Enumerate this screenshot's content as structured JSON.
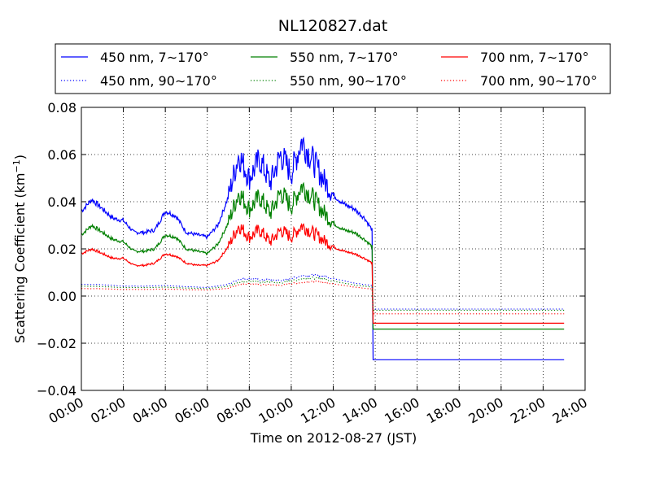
{
  "chart_data": {
    "type": "line",
    "title": "NL120827.dat",
    "xlabel": "Time on 2012-08-27 (JST)",
    "ylabel_main": "Scattering Coefficient (km",
    "ylabel_sup": "−1",
    "ylabel_end": ")",
    "xlim": [
      0,
      24
    ],
    "ylim": [
      -0.04,
      0.08
    ],
    "x_ticks": [
      0,
      2,
      4,
      6,
      8,
      10,
      12,
      14,
      16,
      18,
      20,
      22,
      24
    ],
    "x_tick_labels": [
      "00:00",
      "02:00",
      "04:00",
      "06:00",
      "08:00",
      "10:00",
      "12:00",
      "14:00",
      "16:00",
      "18:00",
      "20:00",
      "22:00",
      "24:00"
    ],
    "y_ticks": [
      -0.04,
      -0.02,
      0.0,
      0.02,
      0.04,
      0.06,
      0.08
    ],
    "y_tick_labels": [
      "−0.04",
      "−0.02",
      "0.00",
      "0.02",
      "0.04",
      "0.06",
      "0.08"
    ],
    "grid": true,
    "legend_position": "top",
    "legend_columns": 3,
    "x_end": 23.0,
    "step_at": 13.9,
    "series": [
      {
        "name": "450 nm, 7∼170°",
        "color": "#0000ff",
        "style": "solid",
        "x": [
          0,
          0.5,
          1,
          1.5,
          2,
          2.5,
          3,
          3.5,
          4,
          4.5,
          5,
          5.5,
          6,
          6.5,
          7,
          7.5,
          8,
          8.5,
          9,
          9.5,
          10,
          10.5,
          11,
          11.5,
          12,
          12.5,
          13,
          13.5,
          13.85
        ],
        "y": [
          0.036,
          0.041,
          0.037,
          0.033,
          0.032,
          0.027,
          0.027,
          0.028,
          0.036,
          0.034,
          0.027,
          0.026,
          0.025,
          0.03,
          0.042,
          0.06,
          0.05,
          0.058,
          0.048,
          0.06,
          0.052,
          0.066,
          0.058,
          0.05,
          0.043,
          0.039,
          0.037,
          0.033,
          0.028
        ],
        "after": -0.027
      },
      {
        "name": "550 nm, 7∼170°",
        "color": "#008000",
        "style": "solid",
        "x": [
          0,
          0.5,
          1,
          1.5,
          2,
          2.5,
          3,
          3.5,
          4,
          4.5,
          5,
          5.5,
          6,
          6.5,
          7,
          7.5,
          8,
          8.5,
          9,
          9.5,
          10,
          10.5,
          11,
          11.5,
          12,
          12.5,
          13,
          13.5,
          13.85
        ],
        "y": [
          0.026,
          0.03,
          0.027,
          0.024,
          0.023,
          0.019,
          0.019,
          0.02,
          0.026,
          0.025,
          0.02,
          0.019,
          0.018,
          0.022,
          0.031,
          0.044,
          0.037,
          0.042,
          0.035,
          0.044,
          0.038,
          0.047,
          0.042,
          0.036,
          0.031,
          0.028,
          0.027,
          0.024,
          0.021
        ],
        "after": -0.014
      },
      {
        "name": "700 nm, 7∼170°",
        "color": "#ff0000",
        "style": "solid",
        "x": [
          0,
          0.5,
          1,
          1.5,
          2,
          2.5,
          3,
          3.5,
          4,
          4.5,
          5,
          5.5,
          6,
          6.5,
          7,
          7.5,
          8,
          8.5,
          9,
          9.5,
          10,
          10.5,
          11,
          11.5,
          12,
          12.5,
          13,
          13.5,
          13.85
        ],
        "y": [
          0.018,
          0.02,
          0.018,
          0.016,
          0.016,
          0.013,
          0.013,
          0.014,
          0.018,
          0.017,
          0.014,
          0.013,
          0.013,
          0.015,
          0.021,
          0.03,
          0.025,
          0.028,
          0.023,
          0.028,
          0.025,
          0.03,
          0.027,
          0.024,
          0.021,
          0.019,
          0.018,
          0.016,
          0.014
        ],
        "after": -0.0115
      },
      {
        "name": "450 nm, 90∼170°",
        "color": "#0000ff",
        "style": "dotted",
        "x": [
          0,
          1,
          2,
          3,
          4,
          5,
          6,
          7,
          7.5,
          8,
          8.5,
          9,
          9.5,
          10,
          10.5,
          11,
          11.5,
          12,
          12.5,
          13,
          13.85
        ],
        "y": [
          0.005,
          0.0048,
          0.0042,
          0.0042,
          0.0045,
          0.004,
          0.0036,
          0.005,
          0.007,
          0.0075,
          0.0068,
          0.007,
          0.0065,
          0.0075,
          0.0085,
          0.009,
          0.0085,
          0.0075,
          0.0065,
          0.0055,
          0.0045
        ],
        "after": -0.0055
      },
      {
        "name": "550 nm, 90∼170°",
        "color": "#008000",
        "style": "dotted",
        "x": [
          0,
          1,
          2,
          3,
          4,
          5,
          6,
          7,
          7.5,
          8,
          8.5,
          9,
          9.5,
          10,
          10.5,
          11,
          11.5,
          12,
          12.5,
          13,
          13.85
        ],
        "y": [
          0.0042,
          0.004,
          0.0036,
          0.0036,
          0.0038,
          0.0034,
          0.0031,
          0.0042,
          0.006,
          0.0064,
          0.0058,
          0.006,
          0.0056,
          0.0064,
          0.0072,
          0.0077,
          0.0072,
          0.0064,
          0.0055,
          0.0047,
          0.0038
        ],
        "after": -0.006
      },
      {
        "name": "700 nm, 90∼170°",
        "color": "#ff0000",
        "style": "dotted",
        "x": [
          0,
          1,
          2,
          3,
          4,
          5,
          6,
          7,
          7.5,
          8,
          8.5,
          9,
          9.5,
          10,
          10.5,
          11,
          11.5,
          12,
          12.5,
          13,
          13.85
        ],
        "y": [
          0.0032,
          0.0031,
          0.0028,
          0.0028,
          0.003,
          0.0027,
          0.0025,
          0.0033,
          0.0048,
          0.0052,
          0.0047,
          0.0049,
          0.0045,
          0.0052,
          0.0058,
          0.0062,
          0.0058,
          0.0052,
          0.0045,
          0.0038,
          0.003
        ],
        "after": -0.0075
      }
    ]
  }
}
